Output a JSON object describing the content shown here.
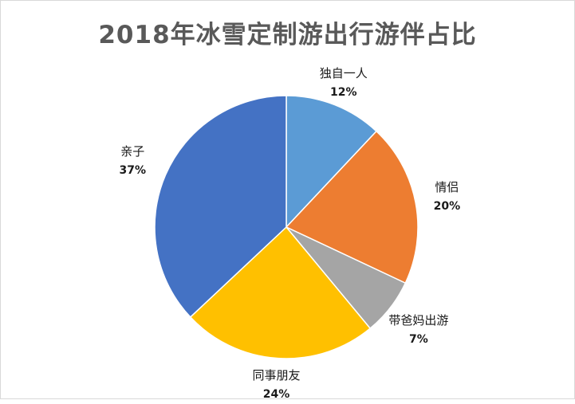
{
  "chart_data": {
    "type": "pie",
    "title": "2018年冰雪定制游出行游伴占比",
    "slices": [
      {
        "label": "独自一人",
        "value": 12,
        "value_label": "12%",
        "color": "#5b9bd5"
      },
      {
        "label": "情侣",
        "value": 20,
        "value_label": "20%",
        "color": "#ed7d31"
      },
      {
        "label": "带爸妈出游",
        "value": 7,
        "value_label": "7%",
        "color": "#a5a5a5"
      },
      {
        "label": "同事朋友",
        "value": 24,
        "value_label": "24%",
        "color": "#ffc000"
      },
      {
        "label": "亲子",
        "value": 37,
        "value_label": "37%",
        "color": "#4472c4"
      }
    ],
    "start_angle": "12 o'clock",
    "direction": "clockwise",
    "legend": "none",
    "data_labels": "outside"
  }
}
